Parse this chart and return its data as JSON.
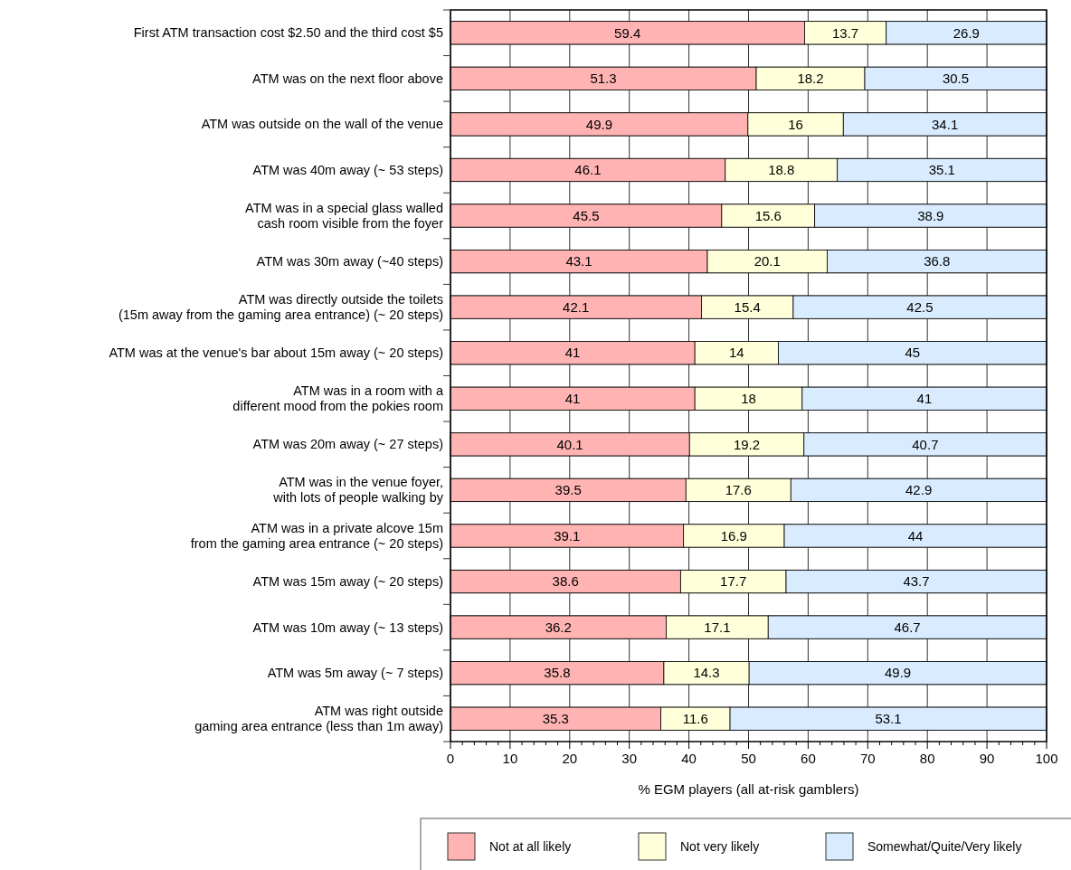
{
  "chart_data": {
    "type": "bar",
    "orientation": "horizontal",
    "stacked": true,
    "data_labels": true,
    "grid": true,
    "legend": "bottom",
    "xlabel": "% EGM players (all at-risk gamblers)",
    "categories": [
      "First ATM transaction cost $2.50 and the third cost $5",
      "ATM was on the next floor above",
      "ATM was outside on the wall of the venue",
      "ATM was 40m away (~ 53 steps)",
      "ATM was in a special glass walled\ncash room visible from the foyer",
      "ATM was 30m away (~40 steps)",
      "ATM was directly outside the toilets\n(15m away from the gaming area entrance) (~ 20 steps)",
      "ATM was at the venue's bar about 15m away (~ 20 steps)",
      "ATM was in a room with a\ndifferent mood from the pokies room",
      "ATM was 20m away (~ 27 steps)",
      "ATM was in the venue foyer,\nwith lots of people walking by",
      "ATM was in a private alcove 15m\nfrom the gaming area entrance (~ 20 steps)",
      "ATM was 15m away (~ 20 steps)",
      "ATM was 10m away (~ 13 steps)",
      "ATM was 5m away (~ 7 steps)",
      "ATM was right outside\ngaming area entrance (less than 1m away)"
    ],
    "series": [
      {
        "name": "Not at all likely",
        "color": "#ffb3b3",
        "values": [
          59.4,
          51.3,
          49.9,
          46.1,
          45.5,
          43.1,
          42.1,
          41,
          41,
          40.1,
          39.5,
          39.1,
          38.6,
          36.2,
          35.8,
          35.3
        ]
      },
      {
        "name": "Not very likely",
        "color": "#ffffd9",
        "values": [
          13.7,
          18.2,
          16,
          18.8,
          15.6,
          20.1,
          15.4,
          14,
          18,
          19.2,
          17.6,
          16.9,
          17.7,
          17.1,
          14.3,
          11.6
        ]
      },
      {
        "name": "Somewhat/Quite/Very likely",
        "color": "#d9ecff",
        "values": [
          26.9,
          30.5,
          34.1,
          35.1,
          38.9,
          36.8,
          42.5,
          45,
          41,
          40.7,
          42.9,
          44,
          43.7,
          46.7,
          49.9,
          53.1
        ]
      }
    ],
    "xlim": [
      0,
      100
    ],
    "xticks": [
      0,
      {
        "value": 2,
        "label": null
      },
      {
        "value": 4,
        "label": null
      },
      {
        "value": 6,
        "label": null
      },
      {
        "value": 8,
        "label": null
      },
      10,
      {
        "value": 12,
        "label": null
      },
      {
        "value": 14,
        "label": null
      },
      {
        "value": 16,
        "label": null
      },
      {
        "value": 18,
        "label": null
      },
      20,
      {
        "value": 22,
        "label": null
      },
      {
        "value": 24,
        "label": null
      },
      {
        "value": 26,
        "label": null
      },
      {
        "value": 28,
        "label": null
      },
      30,
      {
        "value": 32,
        "label": null
      },
      {
        "value": 34,
        "label": null
      },
      {
        "value": 36,
        "label": null
      },
      {
        "value": 38,
        "label": null
      },
      40,
      {
        "value": 42,
        "label": null
      },
      {
        "value": 44,
        "label": null
      },
      {
        "value": 46,
        "label": null
      },
      {
        "value": 48,
        "label": null
      },
      50,
      {
        "value": 52,
        "label": null
      },
      {
        "value": 54,
        "label": null
      },
      {
        "value": 56,
        "label": null
      },
      {
        "value": 58,
        "label": null
      },
      60,
      {
        "value": 62,
        "label": null
      },
      {
        "value": 64,
        "label": null
      },
      {
        "value": 66,
        "label": null
      },
      {
        "value": 68,
        "label": null
      },
      70,
      {
        "value": 72,
        "label": null
      },
      {
        "value": 74,
        "label": null
      },
      {
        "value": 76,
        "label": null
      },
      {
        "value": 78,
        "label": null
      },
      80,
      {
        "value": 82,
        "label": null
      },
      {
        "value": 84,
        "label": null
      },
      {
        "value": 86,
        "label": null
      },
      {
        "value": 88,
        "label": null
      },
      90,
      {
        "value": 92,
        "label": null
      },
      {
        "value": 94,
        "label": null
      },
      {
        "value": 96,
        "label": null
      },
      {
        "value": 98,
        "label": null
      },
      100
    ]
  }
}
